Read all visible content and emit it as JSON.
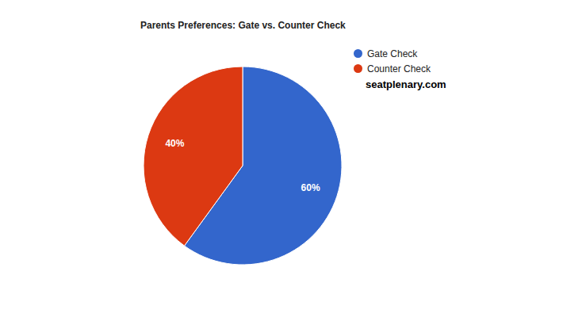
{
  "chart_data": {
    "type": "pie",
    "title": "Parents Preferences: Gate vs. Counter Check",
    "categories": [
      "Gate Check",
      "Counter Check"
    ],
    "values": [
      60,
      40
    ],
    "value_labels": [
      "60%",
      "40%"
    ],
    "colors": [
      "#3366cc",
      "#dc3912"
    ],
    "data_labels": true,
    "legend": "right",
    "annotations": [
      "seatplenary.com"
    ]
  }
}
